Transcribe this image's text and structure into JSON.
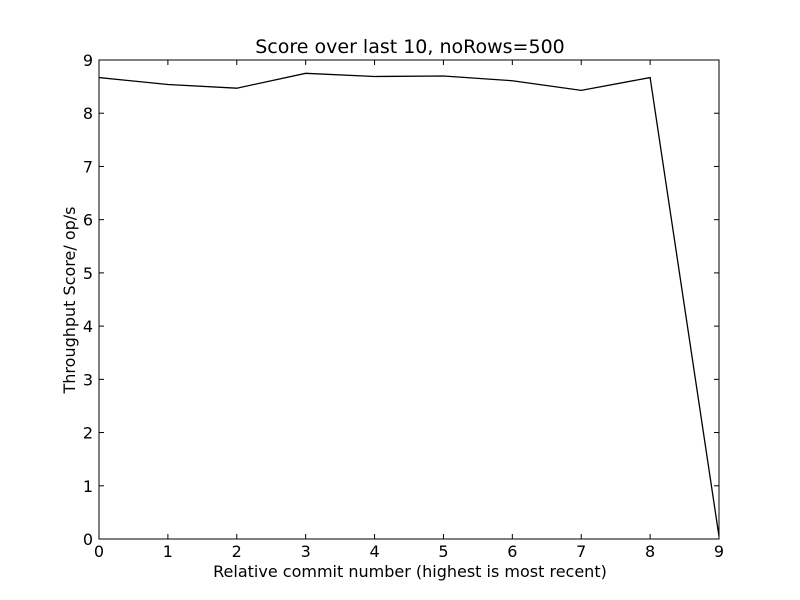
{
  "chart_data": {
    "type": "line",
    "title": "Score over last 10, noRows=500",
    "xlabel": "Relative commit number (highest is most recent)",
    "ylabel": "Throughput Score/ op/s",
    "xlim": [
      0,
      9
    ],
    "ylim": [
      0,
      9
    ],
    "x_ticks": [
      0,
      1,
      2,
      3,
      4,
      5,
      6,
      7,
      8,
      9
    ],
    "y_ticks": [
      0,
      1,
      2,
      3,
      4,
      5,
      6,
      7,
      8,
      9
    ],
    "grid": false,
    "legend": "none",
    "line_color": "#000000",
    "series": [
      {
        "x": [
          0,
          1,
          2,
          3,
          4,
          5,
          6,
          7,
          8,
          9
        ],
        "values": [
          8.67,
          8.54,
          8.47,
          8.75,
          8.69,
          8.7,
          8.61,
          8.43,
          8.67,
          0.05
        ]
      }
    ]
  }
}
